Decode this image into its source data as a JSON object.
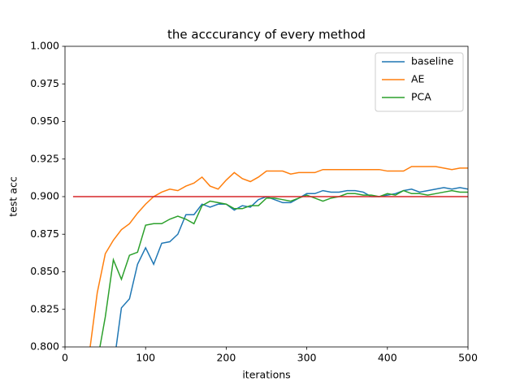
{
  "chart_data": {
    "type": "line",
    "title": "the acccurancy of every method",
    "xlabel": "iterations",
    "ylabel": "test acc",
    "xlim": [
      0,
      500
    ],
    "xticks": [
      0,
      100,
      200,
      300,
      400,
      500
    ],
    "ylim": [
      0.8,
      1.0
    ],
    "yticks": [
      {
        "value": 0.8,
        "label": "0.800"
      },
      {
        "value": 0.825,
        "label": "0.825"
      },
      {
        "value": 0.85,
        "label": "0.850"
      },
      {
        "value": 0.875,
        "label": "0.875"
      },
      {
        "value": 0.9,
        "label": "0.900"
      },
      {
        "value": 0.925,
        "label": "0.925"
      },
      {
        "value": 0.95,
        "label": "0.950"
      },
      {
        "value": 0.975,
        "label": "0.975"
      },
      {
        "value": 1.0,
        "label": "1.000"
      }
    ],
    "legend": "upper right",
    "series": [
      {
        "name": "baseline",
        "color": "#1f77b4",
        "x": [
          60,
          70,
          80,
          90,
          100,
          110,
          120,
          130,
          140,
          150,
          160,
          170,
          180,
          190,
          200,
          210,
          220,
          230,
          240,
          250,
          260,
          270,
          280,
          290,
          300,
          310,
          320,
          330,
          340,
          350,
          360,
          370,
          380,
          390,
          400,
          410,
          420,
          430,
          440,
          450,
          460,
          470,
          480,
          490,
          500
        ],
        "values": [
          0.786,
          0.826,
          0.832,
          0.855,
          0.866,
          0.855,
          0.869,
          0.87,
          0.875,
          0.888,
          0.888,
          0.895,
          0.893,
          0.895,
          0.895,
          0.891,
          0.894,
          0.893,
          0.898,
          0.9,
          0.898,
          0.896,
          0.896,
          0.899,
          0.902,
          0.902,
          0.904,
          0.903,
          0.903,
          0.904,
          0.904,
          0.903,
          0.9,
          0.9,
          0.901,
          0.902,
          0.904,
          0.905,
          0.903,
          0.904,
          0.905,
          0.906,
          0.905,
          0.906,
          0.905
        ]
      },
      {
        "name": "AE",
        "color": "#ff7f0e",
        "x": [
          30,
          40,
          50,
          60,
          70,
          80,
          90,
          100,
          110,
          120,
          130,
          140,
          150,
          160,
          170,
          180,
          190,
          200,
          210,
          220,
          230,
          240,
          250,
          260,
          270,
          280,
          290,
          300,
          310,
          320,
          330,
          340,
          350,
          360,
          370,
          380,
          390,
          400,
          410,
          420,
          430,
          440,
          450,
          460,
          470,
          480,
          490,
          500
        ],
        "values": [
          0.795,
          0.836,
          0.862,
          0.871,
          0.878,
          0.882,
          0.889,
          0.895,
          0.9,
          0.903,
          0.905,
          0.904,
          0.907,
          0.909,
          0.913,
          0.907,
          0.905,
          0.911,
          0.916,
          0.912,
          0.91,
          0.913,
          0.917,
          0.917,
          0.917,
          0.915,
          0.916,
          0.916,
          0.916,
          0.918,
          0.918,
          0.918,
          0.918,
          0.918,
          0.918,
          0.918,
          0.918,
          0.917,
          0.917,
          0.917,
          0.92,
          0.92,
          0.92,
          0.92,
          0.919,
          0.918,
          0.919,
          0.919
        ]
      },
      {
        "name": "PCA",
        "color": "#2ca02c",
        "x": [
          40,
          50,
          60,
          70,
          80,
          90,
          100,
          110,
          120,
          130,
          140,
          150,
          160,
          170,
          180,
          190,
          200,
          210,
          220,
          230,
          240,
          250,
          260,
          270,
          280,
          290,
          300,
          310,
          320,
          330,
          340,
          350,
          360,
          370,
          380,
          390,
          400,
          410,
          420,
          430,
          440,
          450,
          460,
          470,
          480,
          490,
          500
        ],
        "values": [
          0.79,
          0.82,
          0.858,
          0.845,
          0.861,
          0.863,
          0.881,
          0.882,
          0.882,
          0.885,
          0.887,
          0.885,
          0.882,
          0.894,
          0.897,
          0.896,
          0.895,
          0.892,
          0.892,
          0.894,
          0.894,
          0.899,
          0.899,
          0.898,
          0.897,
          0.899,
          0.901,
          0.899,
          0.897,
          0.899,
          0.9,
          0.902,
          0.902,
          0.901,
          0.901,
          0.9,
          0.902,
          0.901,
          0.904,
          0.902,
          0.902,
          0.901,
          0.902,
          0.903,
          0.904,
          0.903,
          0.903
        ]
      }
    ],
    "hlines": [
      {
        "y": 0.9,
        "xmin": 10,
        "xmax": 500,
        "color": "#d62728"
      }
    ]
  }
}
